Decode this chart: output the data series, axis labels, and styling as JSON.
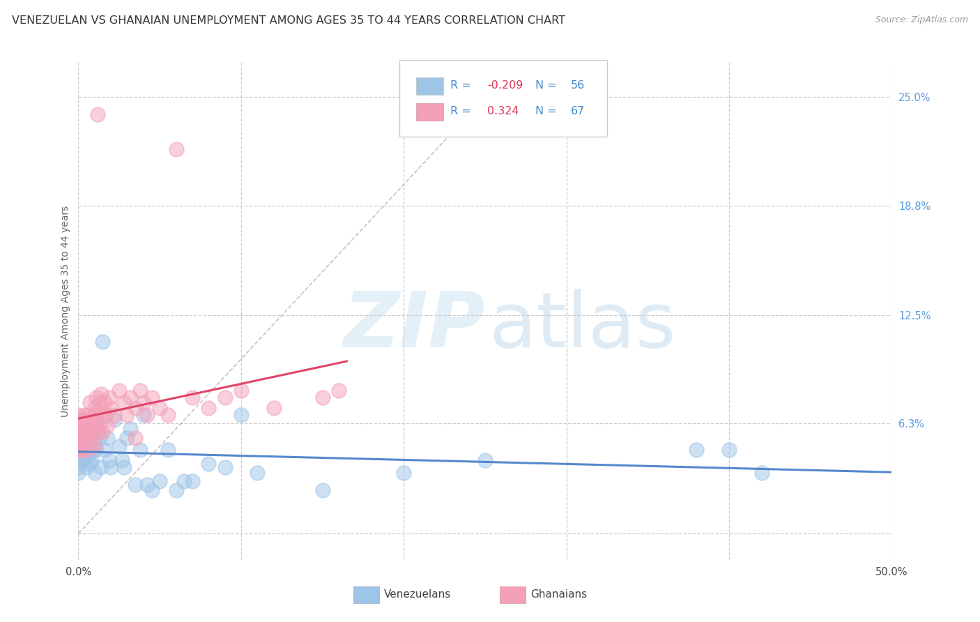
{
  "title": "VENEZUELAN VS GHANAIAN UNEMPLOYMENT AMONG AGES 35 TO 44 YEARS CORRELATION CHART",
  "source": "Source: ZipAtlas.com",
  "ylabel": "Unemployment Among Ages 35 to 44 years",
  "xlim": [
    0,
    0.5
  ],
  "ylim": [
    -0.015,
    0.27
  ],
  "ytick_vals": [
    0.0,
    0.063,
    0.125,
    0.188,
    0.25
  ],
  "ytick_labels": [
    "",
    "6.3%",
    "12.5%",
    "18.8%",
    "25.0%"
  ],
  "xtick_vals": [
    0.0,
    0.1,
    0.2,
    0.3,
    0.4,
    0.5
  ],
  "xtick_labels": [
    "0.0%",
    "",
    "",
    "",
    "",
    "50.0%"
  ],
  "venezuelan_color": "#9ec4e8",
  "ghanaian_color": "#f4a0b8",
  "venezuelan_line_color": "#5588cc",
  "ghanaian_line_color": "#e04468",
  "title_fontsize": 11.5,
  "label_fontsize": 10,
  "tick_fontsize": 10.5,
  "venezuelan_x": [
    0.0,
    0.0,
    0.0,
    0.0,
    0.0,
    0.0,
    0.0,
    0.0,
    0.002,
    0.003,
    0.004,
    0.005,
    0.005,
    0.006,
    0.006,
    0.007,
    0.008,
    0.008,
    0.009,
    0.01,
    0.01,
    0.011,
    0.012,
    0.013,
    0.014,
    0.015,
    0.016,
    0.018,
    0.019,
    0.02,
    0.022,
    0.025,
    0.027,
    0.028,
    0.03,
    0.032,
    0.035,
    0.038,
    0.04,
    0.042,
    0.045,
    0.05,
    0.055,
    0.06,
    0.065,
    0.07,
    0.08,
    0.09,
    0.1,
    0.11,
    0.15,
    0.2,
    0.25,
    0.38,
    0.4,
    0.42
  ],
  "venezuelan_y": [
    0.048,
    0.05,
    0.045,
    0.042,
    0.038,
    0.035,
    0.052,
    0.058,
    0.048,
    0.042,
    0.055,
    0.038,
    0.05,
    0.045,
    0.052,
    0.04,
    0.06,
    0.042,
    0.048,
    0.035,
    0.055,
    0.048,
    0.062,
    0.055,
    0.038,
    0.11,
    0.048,
    0.055,
    0.042,
    0.038,
    0.065,
    0.05,
    0.042,
    0.038,
    0.055,
    0.06,
    0.028,
    0.048,
    0.068,
    0.028,
    0.025,
    0.03,
    0.048,
    0.025,
    0.03,
    0.03,
    0.04,
    0.038,
    0.068,
    0.035,
    0.025,
    0.035,
    0.042,
    0.048,
    0.048,
    0.035
  ],
  "ghanaian_x": [
    0.0,
    0.0,
    0.0,
    0.0,
    0.0,
    0.0,
    0.0,
    0.0,
    0.0,
    0.0,
    0.002,
    0.002,
    0.003,
    0.003,
    0.004,
    0.004,
    0.005,
    0.005,
    0.005,
    0.006,
    0.006,
    0.007,
    0.007,
    0.007,
    0.008,
    0.008,
    0.009,
    0.009,
    0.01,
    0.01,
    0.01,
    0.011,
    0.011,
    0.012,
    0.012,
    0.013,
    0.013,
    0.014,
    0.015,
    0.015,
    0.016,
    0.017,
    0.018,
    0.019,
    0.02,
    0.022,
    0.025,
    0.028,
    0.03,
    0.032,
    0.035,
    0.038,
    0.04,
    0.042,
    0.045,
    0.05,
    0.055,
    0.06,
    0.07,
    0.08,
    0.09,
    0.1,
    0.12,
    0.15,
    0.16,
    0.035,
    0.012
  ],
  "ghanaian_y": [
    0.06,
    0.055,
    0.048,
    0.065,
    0.058,
    0.05,
    0.068,
    0.062,
    0.055,
    0.048,
    0.065,
    0.055,
    0.062,
    0.048,
    0.058,
    0.068,
    0.055,
    0.062,
    0.048,
    0.068,
    0.058,
    0.065,
    0.055,
    0.075,
    0.062,
    0.05,
    0.068,
    0.058,
    0.072,
    0.062,
    0.05,
    0.065,
    0.078,
    0.068,
    0.058,
    0.075,
    0.062,
    0.08,
    0.07,
    0.058,
    0.075,
    0.068,
    0.062,
    0.078,
    0.072,
    0.068,
    0.082,
    0.075,
    0.068,
    0.078,
    0.072,
    0.082,
    0.075,
    0.068,
    0.078,
    0.072,
    0.068,
    0.22,
    0.078,
    0.072,
    0.078,
    0.082,
    0.072,
    0.078,
    0.082,
    0.055,
    0.24
  ]
}
